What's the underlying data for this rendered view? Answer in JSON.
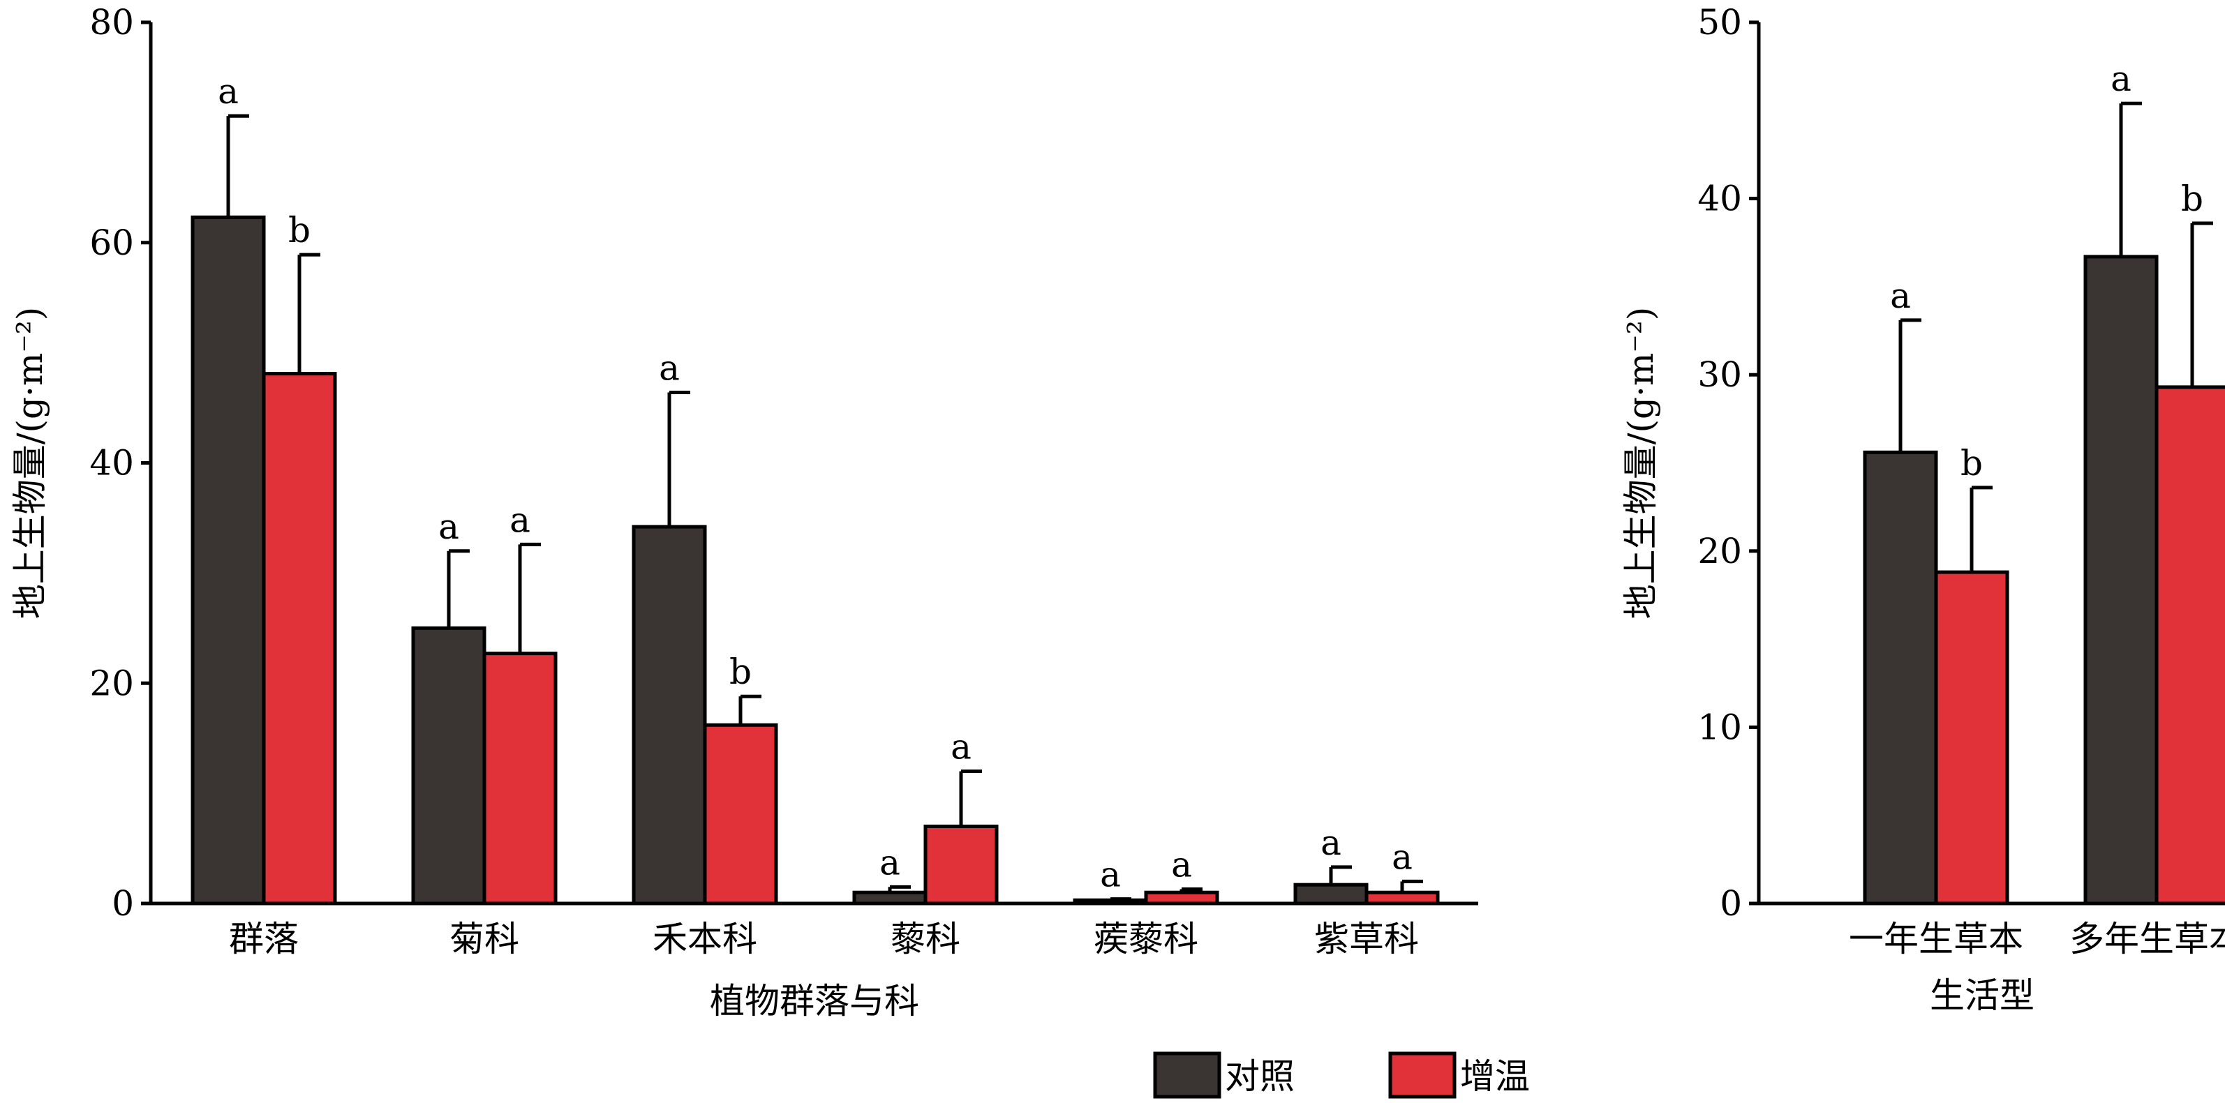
{
  "colors": {
    "control": "#3a3532",
    "warming": "#e03238",
    "axis": "#000000"
  },
  "legend": [
    {
      "key": "control",
      "label": "对照"
    },
    {
      "key": "warming",
      "label": "增温"
    }
  ],
  "chart_data": [
    {
      "type": "bar",
      "xlabel": "植物群落与科",
      "ylabel": "地上生物量/(g·m⁻²)",
      "ylim": [
        0,
        80
      ],
      "yticks": [
        0,
        20,
        40,
        60,
        80
      ],
      "categories": [
        "群落",
        "菊科",
        "禾本科",
        "藜科",
        "蒺藜科",
        "紫草科"
      ],
      "series": [
        {
          "name": "对照",
          "color_key": "control",
          "values": [
            62.3,
            25.0,
            34.2,
            1.0,
            0.3,
            1.7
          ],
          "errors": [
            9.2,
            7.0,
            12.2,
            0.5,
            0.1,
            1.6
          ],
          "letters": [
            "a",
            "a",
            "a",
            "a",
            "a",
            "a"
          ]
        },
        {
          "name": "增温",
          "color_key": "warming",
          "values": [
            48.1,
            22.7,
            16.2,
            7.0,
            1.0,
            1.0
          ],
          "errors": [
            10.8,
            9.9,
            2.6,
            5.0,
            0.3,
            1.0
          ],
          "letters": [
            "b",
            "a",
            "b",
            "a",
            "a",
            "a"
          ]
        }
      ]
    },
    {
      "type": "bar",
      "xlabel": "生活型",
      "ylabel": "地上生物量/(g·m⁻²)",
      "ylim": [
        0,
        50
      ],
      "yticks": [
        0,
        10,
        20,
        30,
        40,
        50
      ],
      "categories": [
        "一年生草本",
        "多年生草本"
      ],
      "series": [
        {
          "name": "对照",
          "color_key": "control",
          "values": [
            25.6,
            36.7
          ],
          "errors": [
            7.5,
            8.7
          ],
          "letters": [
            "a",
            "a"
          ]
        },
        {
          "name": "增温",
          "color_key": "warming",
          "values": [
            18.8,
            29.3
          ],
          "errors": [
            4.8,
            9.3
          ],
          "letters": [
            "b",
            "b"
          ]
        }
      ]
    }
  ]
}
